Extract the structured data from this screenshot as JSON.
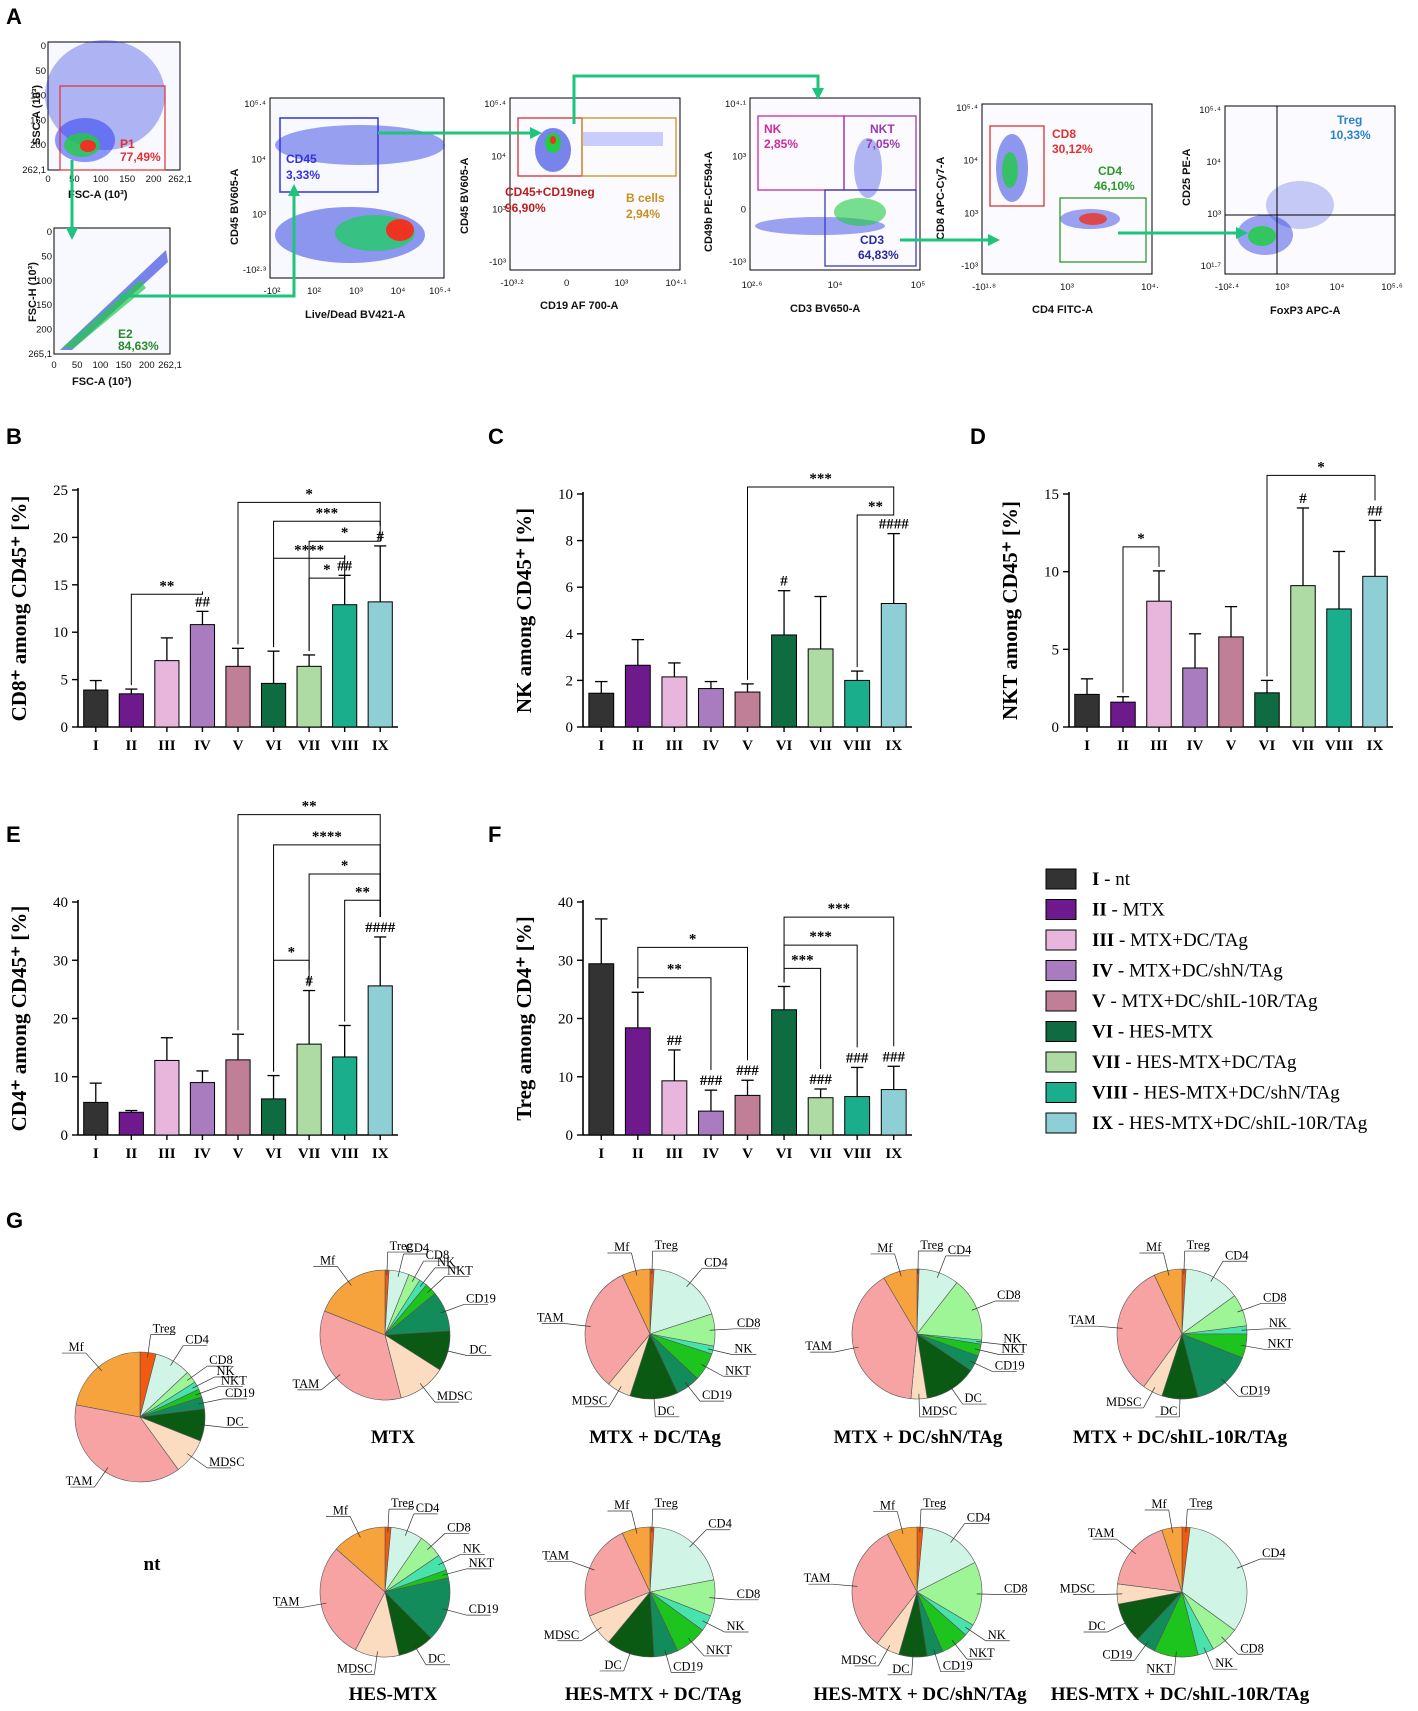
{
  "panels": {
    "A": "A",
    "B": "B",
    "C": "C",
    "D": "D",
    "E": "E",
    "F": "F",
    "G": "G"
  },
  "colors": {
    "I": "#333333",
    "II": "#6e1a8c",
    "III": "#e8b5dc",
    "IV": "#a97cc0",
    "V": "#c07f97",
    "VI": "#0f6b42",
    "VII": "#aedba4",
    "VIII": "#1aae8c",
    "IX": "#8ecfd6",
    "pie": {
      "Treg": "#f25a0f",
      "CD4": "#d0f5e6",
      "CD8": "#9df596",
      "NK": "#48e3ac",
      "NKT": "#1ec41e",
      "CD19": "#138c5b",
      "DC": "#0b5a14",
      "MDSC": "#fcdcc0",
      "TAM": "#f7a3a3",
      "Mf": "#f7a33d"
    },
    "accent_green": "#1ec47c"
  },
  "flow": {
    "plot1": {
      "xlabel": "FSC-A (10³)",
      "ylabel": "SSC-A (10³)",
      "gate": "P1",
      "pct": "77,49%",
      "xticks": [
        "0",
        "50",
        "100",
        "150",
        "200",
        "262,1"
      ],
      "yticks": [
        "0",
        "50",
        "100",
        "150",
        "200",
        "262,1"
      ]
    },
    "plot2": {
      "xlabel": "FSC-A (10³)",
      "ylabel": "FSC-H (10³)",
      "gate": "E2",
      "pct": "84,63%",
      "xticks": [
        "0",
        "50",
        "100",
        "150",
        "200",
        "262,1"
      ],
      "yticks": [
        "0",
        "50",
        "100",
        "150",
        "200",
        "265,1"
      ]
    },
    "plot3": {
      "xlabel": "Live/Dead BV421-A",
      "ylabel": "CD45 BV605-A",
      "gate": "CD45",
      "pct": "3,33%",
      "xticks": [
        "-10²",
        "10²",
        "10³",
        "10⁴",
        "10⁵·⁴"
      ],
      "yticks": [
        "10⁵·⁴",
        "10⁴",
        "10³",
        "-10²·³"
      ]
    },
    "plot4": {
      "xlabel": "CD19 AF 700-A",
      "ylabel": "CD45 BV605-A",
      "gate1": "CD45+CD19neg",
      "pct1": "96,90%",
      "gate2": "B cells",
      "pct2": "2,94%",
      "xticks": [
        "-10³·²",
        "0",
        "10³",
        "10⁴·¹"
      ],
      "yticks": [
        "10⁵·⁴",
        "10⁴",
        "10³",
        "-10³"
      ]
    },
    "plot5": {
      "xlabel": "CD3 BV650-A",
      "ylabel": "CD49b PE-CF594-A",
      "gate1": "NK",
      "pct1": "2,85%",
      "gate2": "NKT",
      "pct2": "7,05%",
      "gate3": "CD3",
      "pct3": "64,83%",
      "xticks": [
        "10²·⁶",
        "10⁴",
        "10⁵"
      ],
      "yticks": [
        "10⁴·¹",
        "10³",
        "0",
        "-10³"
      ]
    },
    "plot6": {
      "xlabel": "CD4 FITC-A",
      "ylabel": "CD8 APC-Cy7-A",
      "gate1": "CD8",
      "pct1": "30,12%",
      "gate2": "CD4",
      "pct2": "46,10%",
      "xticks": [
        "-10¹·⁸",
        "10³",
        "10⁴·"
      ],
      "yticks": [
        "10⁵·⁴",
        "10⁴",
        "10³",
        "-10³"
      ]
    },
    "plot7": {
      "xlabel": "FoxP3 APC-A",
      "ylabel": "CD25 PE-A",
      "gate": "Treg",
      "pct": "10,33%",
      "xticks": [
        "-10²·⁴",
        "10³",
        "10⁴",
        "10⁵·⁶"
      ],
      "yticks": [
        "10⁵·⁴",
        "10⁴",
        "10³",
        "10¹·⁷"
      ]
    }
  },
  "legend": [
    {
      "key": "I",
      "desc": " - nt"
    },
    {
      "key": "II",
      "desc": " - MTX"
    },
    {
      "key": "III",
      "desc": " - MTX+DC/TAg"
    },
    {
      "key": "IV",
      "desc": " - MTX+DC/shN/TAg"
    },
    {
      "key": "V",
      "desc": " - MTX+DC/shIL-10R/TAg"
    },
    {
      "key": "VI",
      "desc": " - HES-MTX"
    },
    {
      "key": "VII",
      "desc": " - HES-MTX+DC/TAg"
    },
    {
      "key": "VIII",
      "desc": " - HES-MTX+DC/shN/TAg"
    },
    {
      "key": "IX",
      "desc": " - HES-MTX+DC/shIL-10R/TAg"
    }
  ],
  "chart_data": [
    {
      "id": "B",
      "type": "bar",
      "ylabel": "CD8⁺ among CD45⁺ [%]",
      "ylim": [
        0,
        25
      ],
      "yticks": [
        0,
        5,
        10,
        15,
        20,
        25
      ],
      "categories": [
        "I",
        "II",
        "III",
        "IV",
        "V",
        "VI",
        "VII",
        "VIII",
        "IX"
      ],
      "values": [
        3.9,
        3.5,
        7.0,
        10.8,
        6.4,
        4.6,
        6.4,
        12.9,
        13.2
      ],
      "errors": [
        1.0,
        0.5,
        2.4,
        1.4,
        1.9,
        3.4,
        1.2,
        3.1,
        5.9
      ],
      "hash": [
        "",
        "",
        "",
        "##",
        "",
        "",
        "",
        "##",
        "#"
      ],
      "brackets": [
        {
          "from": "II",
          "to": "IV",
          "label": "**",
          "y": 14.0
        },
        {
          "from": "V",
          "to": "IX",
          "label": "*",
          "y": 23.7
        },
        {
          "from": "VI",
          "to": "IX",
          "label": "***",
          "y": 21.7
        },
        {
          "from": "VII",
          "to": "IX",
          "label": "*",
          "y": 19.6
        },
        {
          "from": "VI",
          "to": "VIII",
          "label": "****",
          "y": 17.8
        },
        {
          "from": "VII",
          "to": "VIII",
          "label": "*",
          "y": 15.7
        }
      ]
    },
    {
      "id": "C",
      "type": "bar",
      "ylabel": "NK among CD45⁺ [%]",
      "ylim": [
        0,
        10
      ],
      "yticks": [
        0,
        2,
        4,
        6,
        8,
        10
      ],
      "categories": [
        "I",
        "II",
        "III",
        "IV",
        "V",
        "VI",
        "VII",
        "VIII",
        "IX"
      ],
      "values": [
        1.45,
        2.65,
        2.15,
        1.65,
        1.5,
        3.95,
        3.35,
        2.0,
        5.3
      ],
      "errors": [
        0.5,
        1.1,
        0.6,
        0.3,
        0.35,
        1.9,
        2.25,
        0.4,
        3.0
      ],
      "hash": [
        "",
        "",
        "",
        "",
        "",
        "#",
        "",
        "",
        "####"
      ],
      "brackets": [
        {
          "from": "V",
          "to": "IX",
          "label": "***",
          "y": 10.3
        },
        {
          "from": "VIII",
          "to": "IX",
          "label": "**",
          "y": 9.1
        }
      ]
    },
    {
      "id": "D",
      "type": "bar",
      "ylabel": "NKT among CD45⁺ [%]",
      "ylim": [
        0,
        15
      ],
      "yticks": [
        0,
        5,
        10,
        15
      ],
      "categories": [
        "I",
        "II",
        "III",
        "IV",
        "V",
        "VI",
        "VII",
        "VIII",
        "IX"
      ],
      "values": [
        2.1,
        1.6,
        8.1,
        3.8,
        5.8,
        2.2,
        9.1,
        7.6,
        9.7
      ],
      "errors": [
        1.0,
        0.35,
        1.95,
        2.2,
        1.95,
        0.8,
        5.0,
        3.7,
        3.6
      ],
      "hash": [
        "",
        "",
        "",
        "",
        "",
        "",
        "#",
        "",
        "##"
      ],
      "brackets": [
        {
          "from": "II",
          "to": "III",
          "label": "*",
          "y": 11.6
        },
        {
          "from": "VI",
          "to": "IX",
          "label": "*",
          "y": 16.2
        }
      ]
    },
    {
      "id": "E",
      "type": "bar",
      "ylabel": "CD4⁺ among CD45⁺ [%]",
      "ylim": [
        0,
        40
      ],
      "yticks": [
        0,
        10,
        20,
        30,
        40
      ],
      "categories": [
        "I",
        "II",
        "III",
        "IV",
        "V",
        "VI",
        "VII",
        "VIII",
        "IX"
      ],
      "values": [
        5.6,
        3.9,
        12.8,
        9.0,
        12.9,
        6.2,
        15.6,
        13.4,
        25.6
      ],
      "errors": [
        3.3,
        0.3,
        3.9,
        2.0,
        4.4,
        4.0,
        9.2,
        5.4,
        8.4
      ],
      "hash": [
        "",
        "",
        "",
        "",
        "",
        "",
        "#",
        "",
        "####"
      ],
      "brackets": [
        {
          "from": "V",
          "to": "IX",
          "label": "**",
          "y": 55.0
        },
        {
          "from": "VI",
          "to": "IX",
          "label": "****",
          "y": 49.8
        },
        {
          "from": "VII",
          "to": "IX",
          "label": "*",
          "y": 44.8
        },
        {
          "from": "VIII",
          "to": "IX",
          "label": "**",
          "y": 40.3
        },
        {
          "from": "VI",
          "to": "VII",
          "label": "*",
          "y": 30.0
        }
      ]
    },
    {
      "id": "F",
      "type": "bar",
      "ylabel": "Treg among CD4⁺ [%]",
      "ylim": [
        0,
        40
      ],
      "yticks": [
        0,
        10,
        20,
        30,
        40
      ],
      "categories": [
        "I",
        "II",
        "III",
        "IV",
        "V",
        "VI",
        "VII",
        "VIII",
        "IX"
      ],
      "values": [
        29.4,
        18.4,
        9.3,
        4.1,
        6.8,
        21.5,
        6.4,
        6.6,
        7.8
      ],
      "errors": [
        7.7,
        6.1,
        5.3,
        3.6,
        2.6,
        4.0,
        1.5,
        5.0,
        4.0
      ],
      "hash": [
        "",
        "",
        "##",
        "###",
        "###",
        "",
        "###",
        "###",
        "###"
      ],
      "brackets": [
        {
          "from": "II",
          "to": "V",
          "label": "*",
          "y": 32.2
        },
        {
          "from": "II",
          "to": "IV",
          "label": "**",
          "y": 27.0
        },
        {
          "from": "VI",
          "to": "IX",
          "label": "***",
          "y": 37.4
        },
        {
          "from": "VI",
          "to": "VIII",
          "label": "***",
          "y": 32.6
        },
        {
          "from": "VI",
          "to": "VII",
          "label": "***",
          "y": 28.6
        }
      ]
    },
    {
      "id": "G",
      "type": "pie",
      "slice_order": [
        "Treg",
        "CD4",
        "CD8",
        "NK",
        "NKT",
        "CD19",
        "DC",
        "MDSC",
        "TAM",
        "Mf"
      ],
      "pies": [
        {
          "title": "nt",
          "values": [
            4,
            9,
            3,
            2,
            2,
            3,
            8,
            9,
            38,
            22
          ]
        },
        {
          "title": "MTX",
          "values": [
            1,
            5,
            3,
            2,
            3,
            10,
            10,
            12,
            35,
            19
          ]
        },
        {
          "title": "MTX + DC/TAg",
          "values": [
            1,
            19,
            8,
            2,
            7,
            6,
            12,
            6,
            32,
            7
          ]
        },
        {
          "title": "MTX + DC/shN/TAg",
          "values": [
            0.5,
            10,
            16,
            1,
            3,
            4,
            13,
            4,
            40,
            8.5
          ]
        },
        {
          "title": "MTX + DC/shIL-10R/TAg",
          "values": [
            1,
            14,
            8,
            2,
            6,
            15,
            9,
            5,
            33,
            7
          ]
        },
        {
          "title": "HES-MTX",
          "values": [
            1.5,
            8,
            6,
            4,
            2,
            16,
            9,
            11,
            29,
            13.5
          ]
        },
        {
          "title": "HES-MTX + DC/TAg",
          "values": [
            1,
            21,
            9,
            4,
            8,
            6,
            12,
            8,
            24,
            7
          ]
        },
        {
          "title": "HES-MTX + DC/shN/TAg",
          "values": [
            1.5,
            16,
            16,
            3,
            7,
            4,
            7,
            6,
            32,
            7.5
          ]
        },
        {
          "title": "HES-MTX + DC/shIL-10R/TAg",
          "values": [
            2,
            33,
            7,
            4,
            11,
            5,
            10,
            5,
            18,
            5
          ]
        }
      ]
    }
  ]
}
